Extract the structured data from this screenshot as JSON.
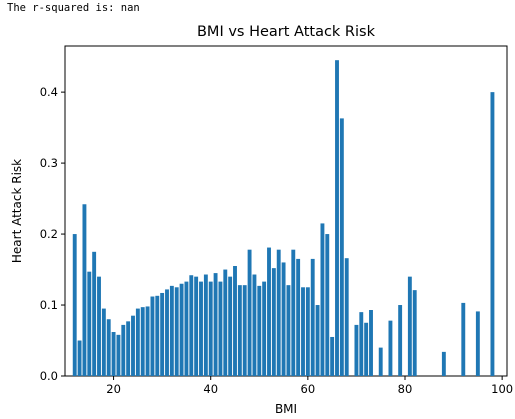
{
  "output": {
    "text": "The r-squared is: nan"
  },
  "colors": {
    "bar": "#1f77b4",
    "axis": "#000000",
    "background": "#ffffff"
  },
  "chart_data": {
    "type": "bar",
    "title": "BMI vs Heart Attack Risk",
    "xlabel": "BMI",
    "ylabel": "Heart Attack Risk",
    "xlim": [
      10,
      101
    ],
    "ylim": [
      0,
      0.465
    ],
    "bar_width": 0.8,
    "grid": false,
    "legend": "none",
    "x_ticks": [
      20,
      40,
      60,
      80,
      100
    ],
    "y_ticks": [
      0.0,
      0.1,
      0.2,
      0.3,
      0.4
    ],
    "y_tick_labels": [
      "0.0",
      "0.1",
      "0.2",
      "0.3",
      "0.4"
    ],
    "x": [
      12,
      13,
      14,
      15,
      16,
      17,
      18,
      19,
      20,
      21,
      22,
      23,
      24,
      25,
      26,
      27,
      28,
      29,
      30,
      31,
      32,
      33,
      34,
      35,
      36,
      37,
      38,
      39,
      40,
      41,
      42,
      43,
      44,
      45,
      46,
      47,
      48,
      49,
      50,
      51,
      52,
      53,
      54,
      55,
      56,
      57,
      58,
      59,
      60,
      61,
      62,
      63,
      64,
      65,
      66,
      67,
      68,
      70,
      71,
      72,
      73,
      75,
      77,
      79,
      81,
      82,
      88,
      92,
      95,
      98
    ],
    "values": [
      0.2,
      0.05,
      0.242,
      0.147,
      0.175,
      0.14,
      0.095,
      0.08,
      0.062,
      0.058,
      0.072,
      0.077,
      0.085,
      0.095,
      0.097,
      0.098,
      0.112,
      0.113,
      0.117,
      0.122,
      0.127,
      0.125,
      0.13,
      0.133,
      0.142,
      0.14,
      0.133,
      0.143,
      0.133,
      0.145,
      0.133,
      0.15,
      0.14,
      0.155,
      0.128,
      0.128,
      0.178,
      0.143,
      0.127,
      0.133,
      0.181,
      0.152,
      0.178,
      0.16,
      0.128,
      0.178,
      0.165,
      0.125,
      0.125,
      0.165,
      0.1,
      0.215,
      0.2,
      0.055,
      0.445,
      0.363,
      0.166,
      0.072,
      0.09,
      0.075,
      0.093,
      0.04,
      0.078,
      0.1,
      0.14,
      0.121,
      0.034,
      0.103,
      0.091,
      0.4
    ]
  }
}
